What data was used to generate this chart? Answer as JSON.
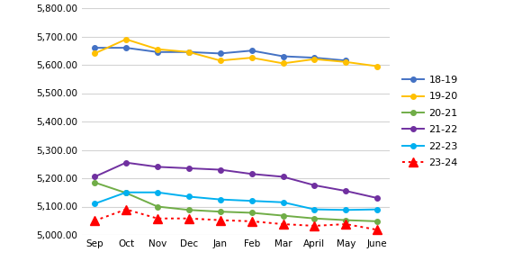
{
  "x_labels": [
    "Sep",
    "Oct",
    "Nov",
    "Dec",
    "Jan",
    "Feb",
    "Mar",
    "April",
    "May",
    "June"
  ],
  "series_order": [
    "18-19",
    "19-20",
    "20-21",
    "21-22",
    "22-23",
    "23-24"
  ],
  "series": {
    "18-19": {
      "values": [
        5660,
        5660,
        5645,
        5645,
        5640,
        5650,
        5630,
        5625,
        5615,
        null
      ],
      "color": "#4472C4",
      "marker": "o",
      "linestyle": "-"
    },
    "19-20": {
      "values": [
        5640,
        5690,
        5655,
        5645,
        5615,
        5625,
        5605,
        5620,
        5610,
        5595
      ],
      "color": "#FFC000",
      "marker": "o",
      "linestyle": "-"
    },
    "20-21": {
      "values": [
        5185,
        5148,
        5100,
        5088,
        5082,
        5078,
        5068,
        5058,
        5052,
        5048
      ],
      "color": "#70AD47",
      "marker": "o",
      "linestyle": "-"
    },
    "21-22": {
      "values": [
        5205,
        5255,
        5240,
        5235,
        5230,
        5215,
        5205,
        5175,
        5155,
        5130
      ],
      "color": "#7030A0",
      "marker": "o",
      "linestyle": "-"
    },
    "22-23": {
      "values": [
        5110,
        5150,
        5150,
        5135,
        5125,
        5120,
        5115,
        5090,
        5088,
        5090
      ],
      "color": "#00B0F0",
      "marker": "o",
      "linestyle": "-"
    },
    "23-24": {
      "values": [
        5050,
        5090,
        5058,
        5058,
        5052,
        5048,
        5038,
        5032,
        5038,
        5018
      ],
      "color": "#FF0000",
      "marker": "^",
      "linestyle": ":"
    }
  },
  "ylim": [
    5000,
    5800
  ],
  "yticks": [
    5000,
    5100,
    5200,
    5300,
    5400,
    5500,
    5600,
    5700,
    5800
  ],
  "ytick_labels": [
    "5,000.00",
    "5,100.00",
    "5,200.00",
    "5,300.00",
    "5,400.00",
    "5,500.00",
    "5,600.00",
    "5,700.00",
    "5,800.00"
  ],
  "background_color": "#FFFFFF",
  "grid_color": "#D3D3D3",
  "figsize": [
    5.7,
    3.0
  ],
  "dpi": 100
}
